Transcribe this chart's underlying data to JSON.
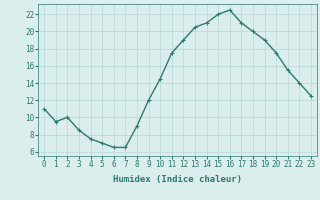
{
  "x": [
    0,
    1,
    2,
    3,
    4,
    5,
    6,
    7,
    8,
    9,
    10,
    11,
    12,
    13,
    14,
    15,
    16,
    17,
    18,
    19,
    20,
    21,
    22,
    23
  ],
  "y": [
    11,
    9.5,
    10,
    8.5,
    7.5,
    7,
    6.5,
    6.5,
    9,
    12,
    14.5,
    17.5,
    19,
    20.5,
    21,
    22,
    22.5,
    21,
    20,
    19,
    17.5,
    15.5,
    14,
    12.5
  ],
  "line_color": "#2d7a6e",
  "marker": "+",
  "markersize": 3,
  "linewidth": 1.0,
  "bg_color": "#daeeed",
  "grid_color": "#b8d8d5",
  "xlabel": "Humidex (Indice chaleur)",
  "xlabel_fontsize": 6.5,
  "ylabel_ticks": [
    6,
    8,
    10,
    12,
    14,
    16,
    18,
    20,
    22
  ],
  "xlim": [
    -0.5,
    23.5
  ],
  "ylim": [
    5.5,
    23.2
  ],
  "tick_fontsize": 5.5,
  "axis_color": "#2d7a6e"
}
